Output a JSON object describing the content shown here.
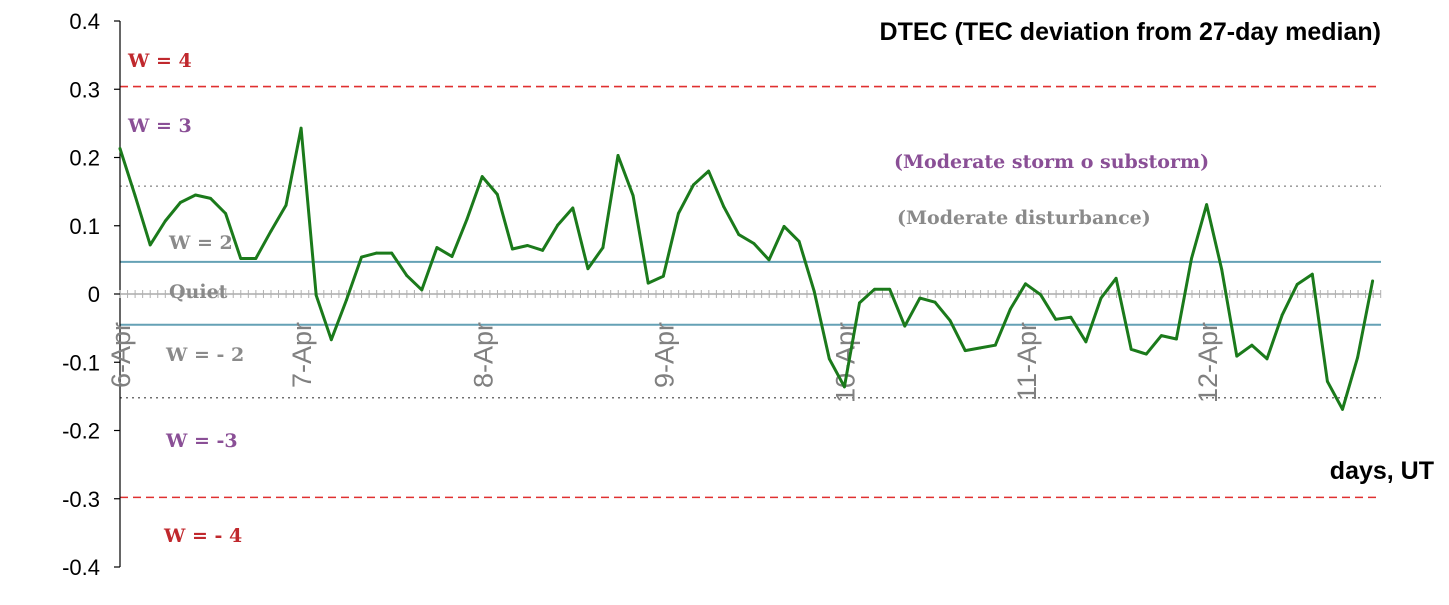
{
  "chart_data": {
    "type": "line",
    "title": "DTEC (TEC deviation from 27-day median)",
    "xlabel": "days, UT",
    "ylabel": "",
    "ylim": [
      -0.4,
      0.4
    ],
    "yticks": [
      "0.4",
      "0.3",
      "0.2",
      "0.1",
      "0",
      "-0.1",
      "-0.2",
      "-0.3",
      "-0.4"
    ],
    "ytick_values": [
      0.4,
      0.3,
      0.2,
      0.1,
      0,
      -0.1,
      -0.2,
      -0.3,
      -0.4
    ],
    "xlim": [
      0,
      6.96
    ],
    "xtick_labels": [
      "6-Apr",
      "7-Apr",
      "8-Apr",
      "9-Apr",
      "10-Apr",
      "11-Apr",
      "12-Apr"
    ],
    "xtick_values": [
      0,
      1,
      2,
      3,
      4,
      5,
      6
    ],
    "minor_ticks_per_day": 24,
    "series": [
      {
        "color": "#1b7a1b",
        "x_step_days": 0.0833,
        "values": [
          0.213,
          0.144,
          0.072,
          0.107,
          0.134,
          0.145,
          0.14,
          0.118,
          0.052,
          0.052,
          0.092,
          0.13,
          0.243,
          -0.002,
          -0.067,
          -0.009,
          0.054,
          0.06,
          0.06,
          0.027,
          0.006,
          0.068,
          0.055,
          0.11,
          0.172,
          0.146,
          0.066,
          0.071,
          0.064,
          0.101,
          0.126,
          0.037,
          0.068,
          0.203,
          0.144,
          0.016,
          0.026,
          0.118,
          0.16,
          0.18,
          0.128,
          0.087,
          0.074,
          0.05,
          0.099,
          0.077,
          0.004,
          -0.095,
          -0.136,
          -0.013,
          0.007,
          0.007,
          -0.047,
          -0.006,
          -0.012,
          -0.039,
          -0.083,
          -0.079,
          -0.075,
          -0.022,
          0.015,
          -0.001,
          -0.037,
          -0.034,
          -0.07,
          -0.006,
          0.023,
          -0.081,
          -0.088,
          -0.061,
          -0.066,
          0.052,
          0.131,
          0.036,
          -0.091,
          -0.075,
          -0.095,
          -0.031,
          0.014,
          0.029,
          -0.128,
          -0.169,
          -0.093,
          0.019
        ]
      }
    ],
    "reference_lines": [
      {
        "y": 0.304,
        "style": "dashed",
        "color": "#e03030"
      },
      {
        "y": 0.158,
        "style": "dotted",
        "color": "#a0a0a0"
      },
      {
        "y": 0.047,
        "style": "solid",
        "color": "#4a90a8"
      },
      {
        "y": -0.045,
        "style": "solid",
        "color": "#4a90a8"
      },
      {
        "y": -0.152,
        "style": "dotted",
        "color": "#707070"
      },
      {
        "y": -0.298,
        "style": "dashed",
        "color": "#e03030"
      }
    ],
    "annotations": [
      {
        "text": "W = 4",
        "color": "#c0282d"
      },
      {
        "text": "W = 3",
        "color": "#8a4f96"
      },
      {
        "text": "(Moderate storm o substorm)",
        "color": "#8a4f96"
      },
      {
        "text": "(Moderate disturbance)",
        "color": "#8a8a8a"
      },
      {
        "text": "W = 2",
        "color": "#8a8a8a"
      },
      {
        "text": "Quiet",
        "color": "#8a8a8a"
      },
      {
        "text": "W = - 2",
        "color": "#8a8a8a"
      },
      {
        "text": "W = -3",
        "color": "#8a4f96"
      },
      {
        "text": "W = - 4",
        "color": "#c0282d"
      }
    ],
    "grid": false,
    "legend": "none"
  }
}
